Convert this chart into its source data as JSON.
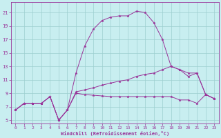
{
  "xlabel": "Windchill (Refroidissement éolien,°C)",
  "bg_color": "#c8eef0",
  "grid_color": "#9dcfcf",
  "line_color": "#993399",
  "xlim": [
    -0.5,
    23.5
  ],
  "ylim": [
    4.5,
    22.5
  ],
  "xticks": [
    0,
    1,
    2,
    3,
    4,
    5,
    6,
    7,
    8,
    9,
    10,
    11,
    12,
    13,
    14,
    15,
    16,
    17,
    18,
    19,
    20,
    21,
    22,
    23
  ],
  "yticks": [
    5,
    7,
    9,
    11,
    13,
    15,
    17,
    19,
    21
  ],
  "line_big_x": [
    0,
    1,
    2,
    3,
    4,
    5,
    6,
    7,
    8,
    9,
    10,
    11,
    12,
    13,
    14,
    15,
    16,
    17,
    18,
    19,
    20,
    21,
    22,
    23
  ],
  "line_big_y": [
    6.5,
    7.5,
    7.5,
    7.5,
    8.5,
    5.0,
    6.5,
    12.0,
    16.0,
    18.5,
    19.8,
    20.3,
    20.5,
    20.5,
    21.2,
    21.0,
    19.5,
    17.0,
    13.0,
    12.5,
    11.5,
    12.0,
    8.8,
    8.2
  ],
  "line_mid_x": [
    0,
    1,
    2,
    3,
    4,
    5,
    6,
    7,
    8,
    9,
    10,
    11,
    12,
    13,
    14,
    15,
    16,
    17,
    18,
    19,
    20,
    21,
    22,
    23
  ],
  "line_mid_y": [
    6.5,
    7.5,
    7.5,
    7.5,
    8.5,
    5.0,
    6.5,
    9.2,
    9.5,
    9.8,
    10.2,
    10.5,
    10.8,
    11.0,
    11.5,
    11.8,
    12.0,
    12.5,
    13.0,
    12.5,
    12.0,
    12.0,
    8.8,
    8.2
  ],
  "line_flat_x": [
    0,
    1,
    2,
    3,
    4,
    5,
    6,
    7,
    8,
    9,
    10,
    11,
    12,
    13,
    14,
    15,
    16,
    17,
    18,
    19,
    20,
    21,
    22,
    23
  ],
  "line_flat_y": [
    6.5,
    7.5,
    7.5,
    7.5,
    8.5,
    5.0,
    6.5,
    9.0,
    8.8,
    8.7,
    8.6,
    8.5,
    8.5,
    8.5,
    8.5,
    8.5,
    8.5,
    8.5,
    8.5,
    8.0,
    8.0,
    7.5,
    8.8,
    8.2
  ]
}
